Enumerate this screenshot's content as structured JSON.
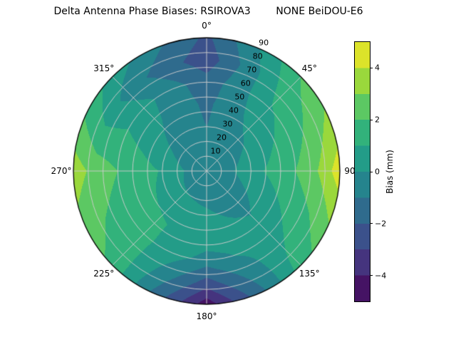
{
  "title": "Delta Antenna Phase Biases: RSIROVA3        NONE BeiDOU-E6",
  "chart_data": {
    "type": "heatmap",
    "projection": "polar",
    "title": "Delta Antenna Phase Biases: RSIROVA3        NONE BeiDOU-E6",
    "angular_ticks": [
      {
        "label": "0°",
        "deg": 0
      },
      {
        "label": "45°",
        "deg": 45
      },
      {
        "label": "90°",
        "deg": 90
      },
      {
        "label": "135°",
        "deg": 135
      },
      {
        "label": "180°",
        "deg": 180
      },
      {
        "label": "225°",
        "deg": 225
      },
      {
        "label": "270°",
        "deg": 270
      },
      {
        "label": "315°",
        "deg": 315
      }
    ],
    "radial_ticks": [
      {
        "label": "10",
        "r": 10
      },
      {
        "label": "20",
        "r": 20
      },
      {
        "label": "30",
        "r": 30
      },
      {
        "label": "40",
        "r": 40
      },
      {
        "label": "50",
        "r": 50
      },
      {
        "label": "60",
        "r": 60
      },
      {
        "label": "70",
        "r": 70
      },
      {
        "label": "80",
        "r": 80
      },
      {
        "label": "90",
        "r": 90
      }
    ],
    "radial_label_angle_deg": 24,
    "radial_max": 90,
    "grid_on": true,
    "colorbar": {
      "label": "Bias (mm)",
      "ticks": [
        {
          "label": "4",
          "value": 4
        },
        {
          "label": "2",
          "value": 2
        },
        {
          "label": "0",
          "value": 0
        },
        {
          "label": "−2",
          "value": -2
        },
        {
          "label": "−4",
          "value": -4
        }
      ],
      "vmin": -5,
      "vmax": 5,
      "level_step_mm": 1
    },
    "colormap": {
      "name": "viridis",
      "stops": [
        "#440154",
        "#472d7b",
        "#3b518b",
        "#2c718e",
        "#21918c",
        "#27ad81",
        "#5cc863",
        "#aadc32",
        "#fde725"
      ]
    },
    "grid": {
      "azimuth_deg": [
        0,
        45,
        90,
        135,
        180,
        225,
        270,
        315,
        360
      ],
      "zenith_deg": [
        0,
        15,
        30,
        45,
        60,
        75,
        90
      ],
      "values_mm": [
        [
          -0.5,
          -0.5,
          -0.5,
          -0.5,
          -0.5,
          -0.5,
          -0.5,
          -0.5,
          -0.5
        ],
        [
          -0.8,
          -0.5,
          -0.2,
          -0.6,
          -0.4,
          -0.2,
          0.0,
          -0.6,
          -0.8
        ],
        [
          -1.0,
          -0.2,
          0.6,
          -0.4,
          0.2,
          0.6,
          0.9,
          -0.3,
          -1.0
        ],
        [
          -1.2,
          0.4,
          1.3,
          0.1,
          0.6,
          1.1,
          1.5,
          0.1,
          -1.2
        ],
        [
          -1.6,
          0.9,
          2.0,
          0.6,
          -0.4,
          1.3,
          2.0,
          0.4,
          -1.6
        ],
        [
          -2.6,
          1.5,
          3.0,
          1.0,
          -2.4,
          1.5,
          2.6,
          -0.4,
          -2.6
        ],
        [
          -2.2,
          2.0,
          4.6,
          1.5,
          -4.6,
          1.8,
          3.6,
          0.6,
          -2.2
        ]
      ]
    }
  }
}
